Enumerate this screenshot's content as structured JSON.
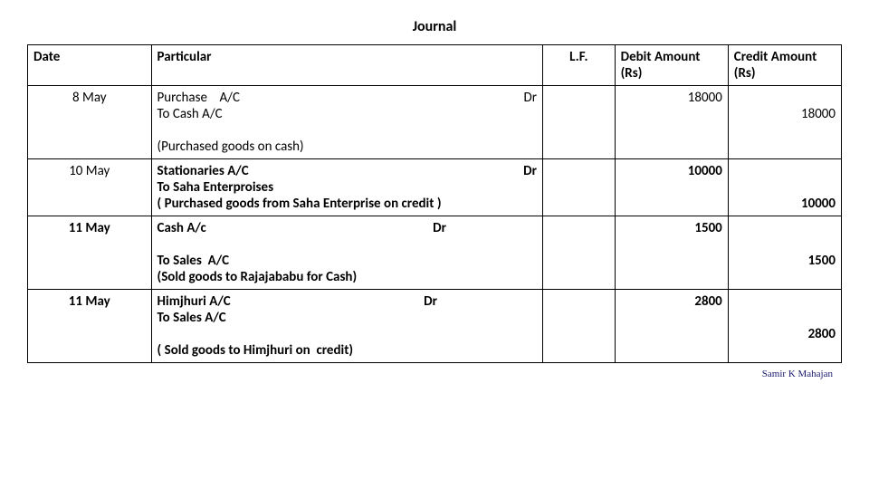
{
  "title": "Journal",
  "columns": {
    "date": "Date",
    "particular": "Particular",
    "lf": "L.F.",
    "debit": "Debit Amount (Rs)",
    "credit": "Credit Amount (Rs)"
  },
  "rows": [
    {
      "date": "8 May",
      "line1_left": "Purchase    A/C",
      "line1_right": "Dr",
      "line2": "To Cash A/C",
      "narration": "(Purchased goods on cash)",
      "debit": "18000",
      "credit": "18000"
    },
    {
      "date": "10 May",
      "line1_left": "Stationaries A/C",
      "line1_right": "Dr",
      "line2": "To Saha Enterproises",
      "narration": "( Purchased goods from Saha Enterprise on credit )",
      "debit": "10000",
      "credit": "10000"
    },
    {
      "date": "11 May",
      "line1_left": "Cash A/c",
      "line1_right": "Dr",
      "line2": "To Sales  A/C",
      "narration": "(Sold goods to Rajajababu for Cash)",
      "debit": "1500",
      "credit": "1500"
    },
    {
      "date": "11 May",
      "line1_left": "Himjhuri A/C",
      "line1_right": "Dr",
      "line2": "To Sales A/C",
      "narration": "( Sold goods to Himjhuri on  credit)",
      "debit": "2800",
      "credit": "2800"
    }
  ],
  "footer": "Samir K Mahajan"
}
